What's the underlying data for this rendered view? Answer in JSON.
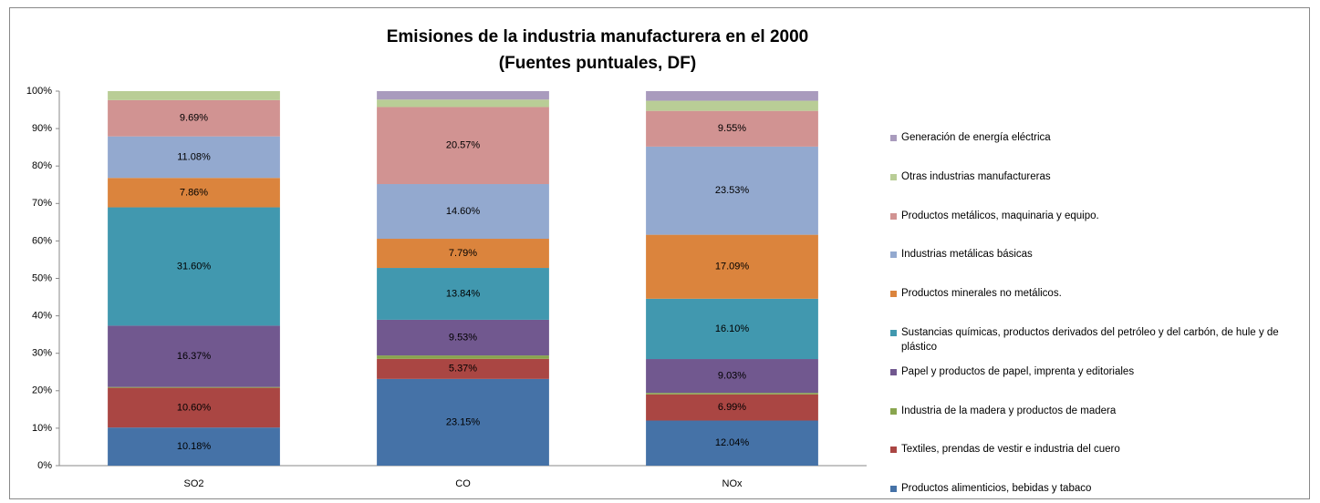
{
  "chart_data": {
    "type": "stacked-bar-100",
    "title": "Emisiones de la industria manufacturera en el 2000",
    "subtitle": "(Fuentes puntuales, DF)",
    "categories": [
      "SO2",
      "CO",
      "NOx"
    ],
    "ylim": [
      0,
      100
    ],
    "yticks": [
      {
        "value": 0,
        "label": "0%"
      },
      {
        "value": 10,
        "label": "10%"
      },
      {
        "value": 20,
        "label": "20%"
      },
      {
        "value": 30,
        "label": "30%"
      },
      {
        "value": 40,
        "label": "40%"
      },
      {
        "value": 50,
        "label": "50%"
      },
      {
        "value": 60,
        "label": "60%"
      },
      {
        "value": 70,
        "label": "70%"
      },
      {
        "value": 80,
        "label": "80%"
      },
      {
        "value": 90,
        "label": "90%"
      },
      {
        "value": 100,
        "label": "100%"
      }
    ],
    "grid": false,
    "legend": "right",
    "series": [
      {
        "name": "Productos alimenticios,  bebidas y tabaco",
        "color": "#4572a7",
        "values": [
          10.18,
          23.15,
          12.04
        ],
        "value_labels": [
          "10.18%",
          "23.15%",
          "12.04%"
        ]
      },
      {
        "name": "Textiles, prendas de vestir e industria del cuero",
        "color": "#aa4643",
        "values": [
          10.6,
          5.37,
          6.99
        ],
        "value_labels": [
          "10.60%",
          "5.37%",
          "6.99%"
        ]
      },
      {
        "name": "Industria de la madera y productos de madera",
        "color": "#89a54e",
        "values": [
          0.22,
          0.9,
          0.4
        ],
        "value_labels": [
          null,
          null,
          null
        ]
      },
      {
        "name": "Papel y productos de papel, imprenta y editoriales",
        "color": "#71588f",
        "values": [
          16.37,
          9.53,
          9.03
        ],
        "value_labels": [
          "16.37%",
          "9.53%",
          "9.03%"
        ]
      },
      {
        "name": "Sustancias químicas,  productos derivados del petróleo y del carbón,  de hule y de plástico",
        "color": "#4198af",
        "values": [
          31.6,
          13.84,
          16.1
        ],
        "value_labels": [
          "31.60%",
          "13.84%",
          "16.10%"
        ]
      },
      {
        "name": "Productos minerales no metálicos.",
        "color": "#db843d",
        "values": [
          7.86,
          7.79,
          17.09
        ],
        "value_labels": [
          "7.86%",
          "7.79%",
          "17.09%"
        ]
      },
      {
        "name": "Industrias metálicas  básicas",
        "color": "#93a9cf",
        "values": [
          11.08,
          14.6,
          23.53
        ],
        "value_labels": [
          "11.08%",
          "14.60%",
          "23.53%"
        ]
      },
      {
        "name": "Productos metálicos,  maquinaria  y equipo.",
        "color": "#d19392",
        "values": [
          9.69,
          20.57,
          9.55
        ],
        "value_labels": [
          "9.69%",
          "20.57%",
          "9.55%"
        ]
      },
      {
        "name": "Otras industrias manufactureras",
        "color": "#b9cd96",
        "values": [
          2.4,
          2.0,
          2.7
        ],
        "value_labels": [
          null,
          null,
          null
        ]
      },
      {
        "name": "Generación de energía eléctrica",
        "color": "#a99bbd",
        "values": [
          0,
          2.25,
          2.57
        ],
        "value_labels": [
          null,
          null,
          null
        ]
      }
    ]
  }
}
